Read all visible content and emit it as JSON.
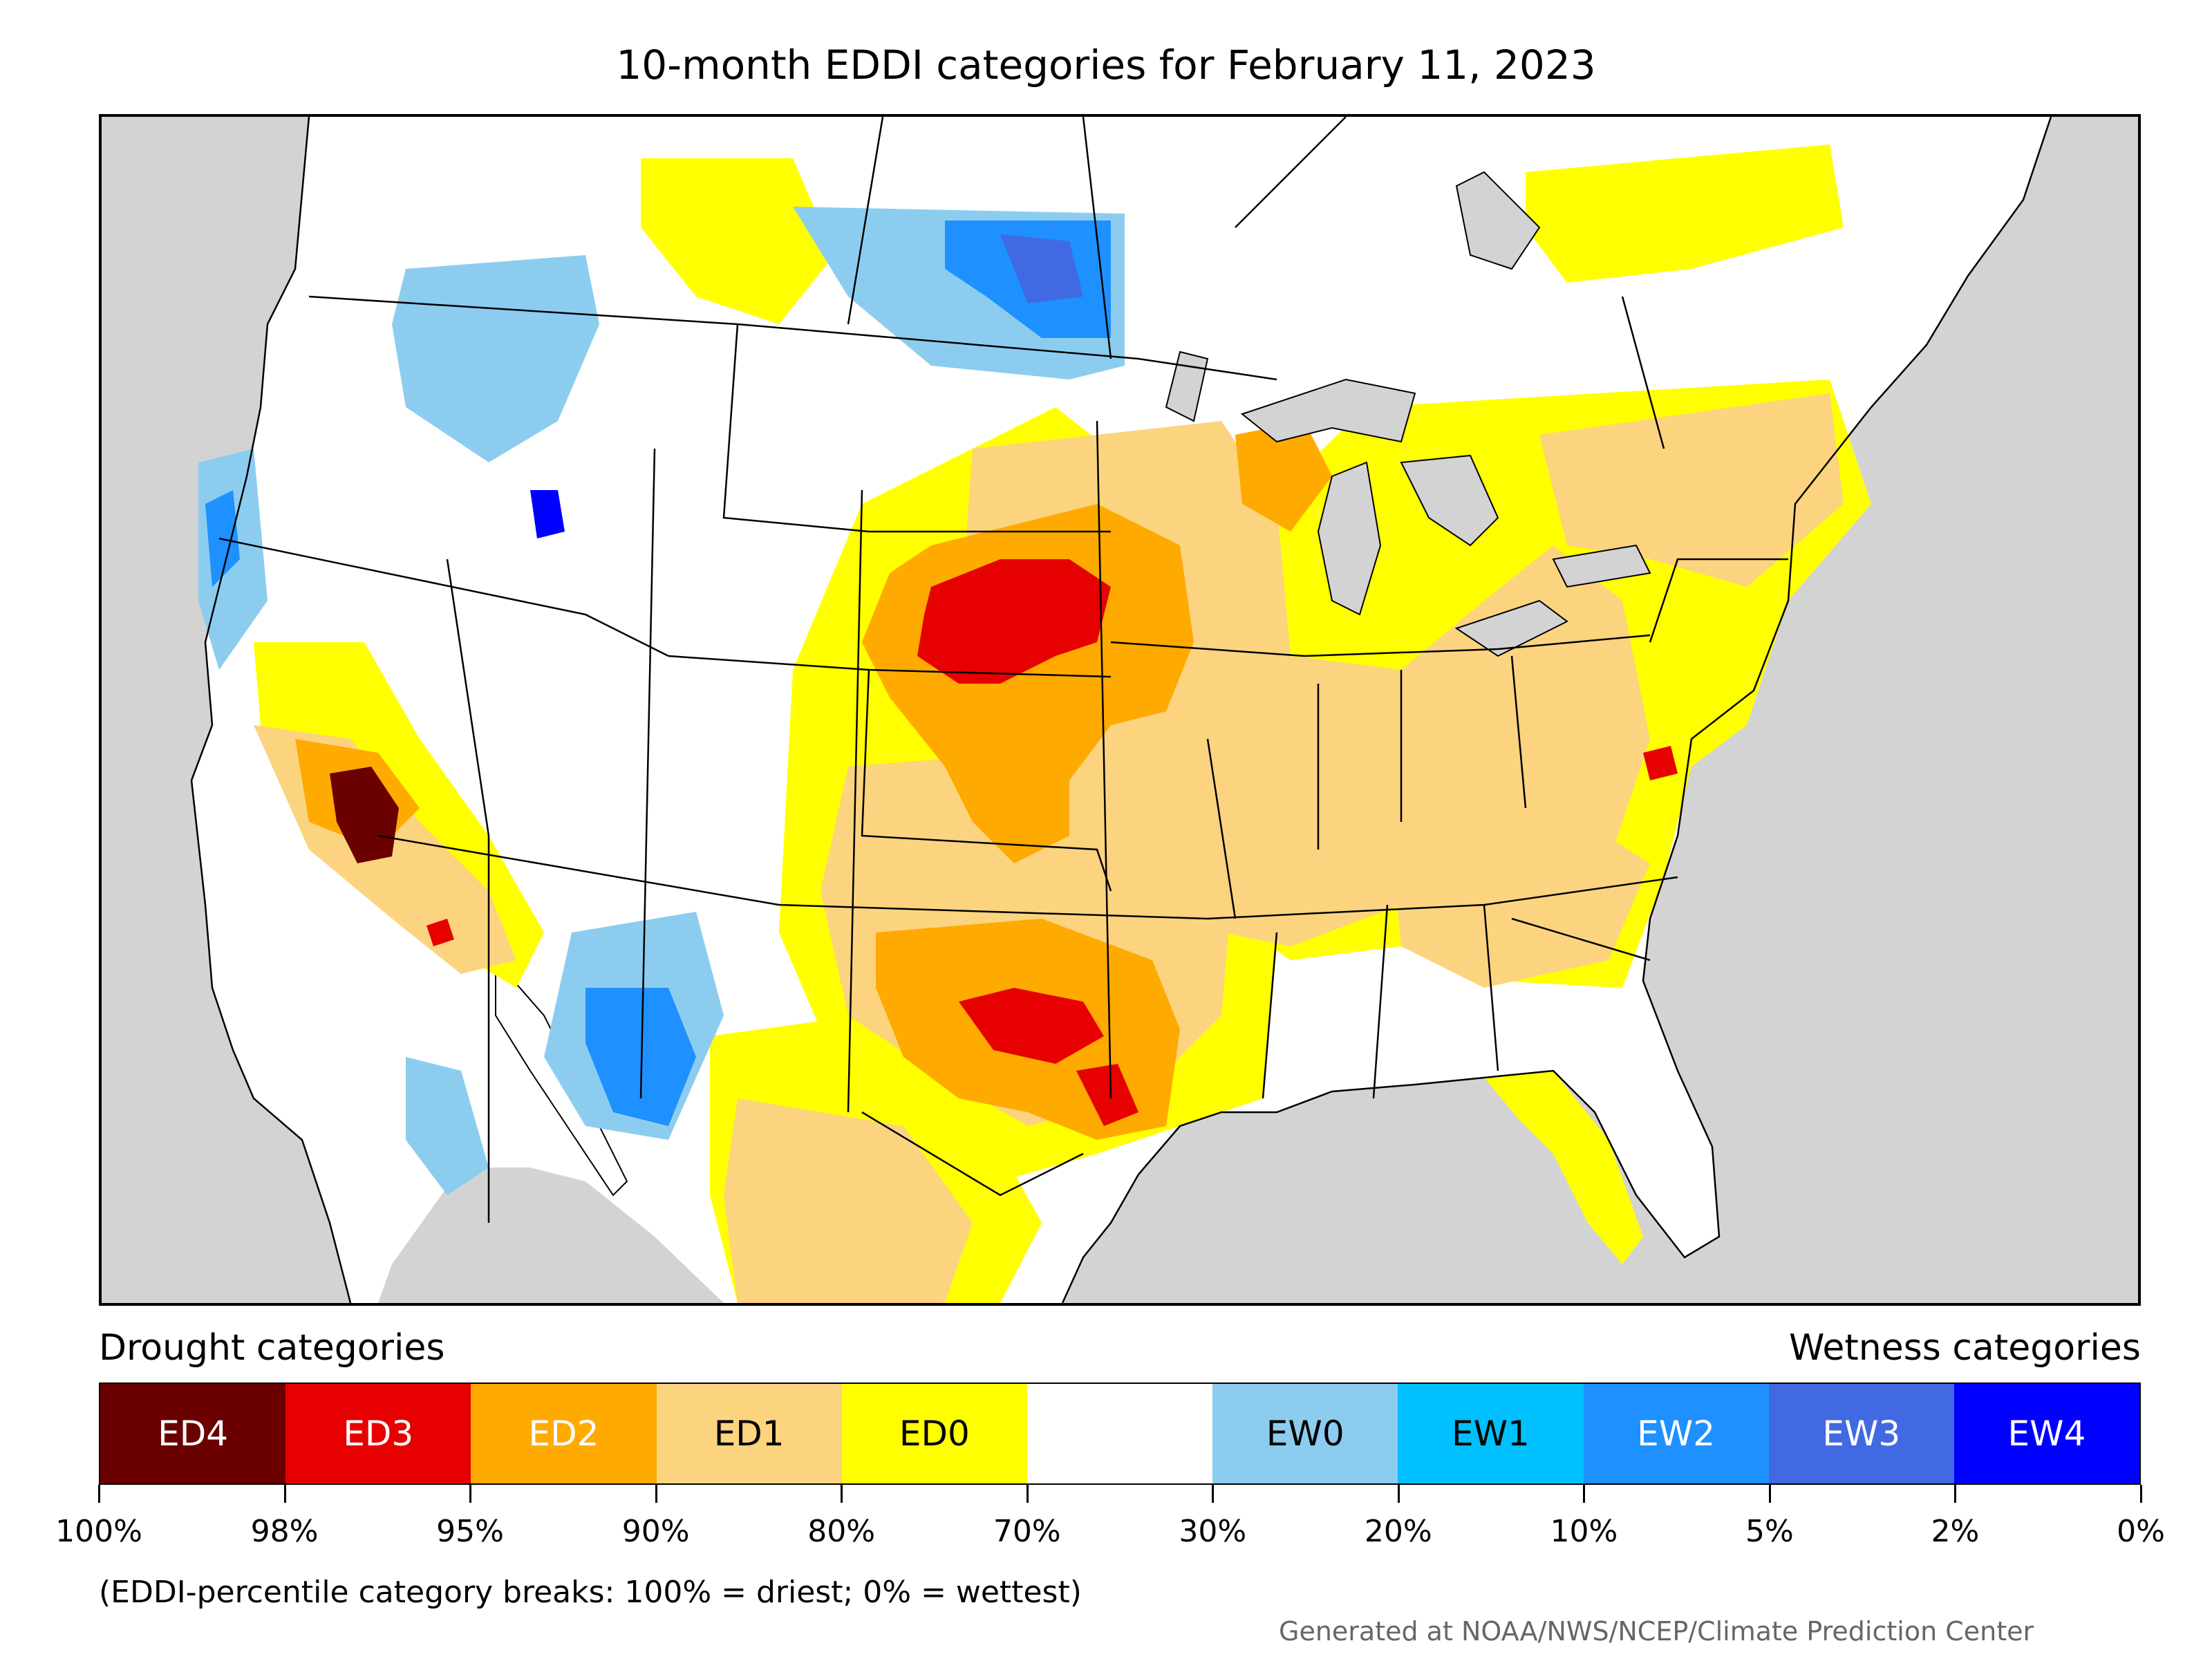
{
  "title": "10-month EDDI categories for February 11, 2023",
  "legend": {
    "drought_label": "Drought categories",
    "wetness_label": "Wetness categories",
    "categories": [
      {
        "label": "ED4",
        "color": "#6b0000",
        "text_color": "#ffffff"
      },
      {
        "label": "ED3",
        "color": "#e60000",
        "text_color": "#ffffff"
      },
      {
        "label": "ED2",
        "color": "#ffaa00",
        "text_color": "#ffffff"
      },
      {
        "label": "ED1",
        "color": "#fcd37f",
        "text_color": "#000000"
      },
      {
        "label": "ED0",
        "color": "#ffff00",
        "text_color": "#000000"
      },
      {
        "label": "",
        "color": "#ffffff",
        "text_color": "#000000"
      },
      {
        "label": "EW0",
        "color": "#8ccdef",
        "text_color": "#000000"
      },
      {
        "label": "EW1",
        "color": "#00c0ff",
        "text_color": "#000000"
      },
      {
        "label": "EW2",
        "color": "#1e90ff",
        "text_color": "#ffffff"
      },
      {
        "label": "EW3",
        "color": "#4169e1",
        "text_color": "#ffffff"
      },
      {
        "label": "EW4",
        "color": "#0000ff",
        "text_color": "#ffffff"
      }
    ],
    "breaks": [
      "100%",
      "98%",
      "95%",
      "90%",
      "80%",
      "70%",
      "30%",
      "20%",
      "10%",
      "5%",
      "2%",
      "0%"
    ]
  },
  "note": "(EDDI-percentile category breaks: 100% = driest; 0% = wettest)",
  "credit": "Generated at NOAA/NWS/NCEP/Climate Prediction Center",
  "map_regions": [
    {
      "name": "central-plains-ed3",
      "category": "ED3"
    },
    {
      "name": "california-ed4",
      "category": "ED4"
    },
    {
      "name": "texas-ed3",
      "category": "ED3"
    },
    {
      "name": "north-dakota-ew2",
      "category": "EW2"
    },
    {
      "name": "arizona-ew2",
      "category": "EW2"
    },
    {
      "name": "idaho-ew4",
      "category": "EW4"
    }
  ]
}
